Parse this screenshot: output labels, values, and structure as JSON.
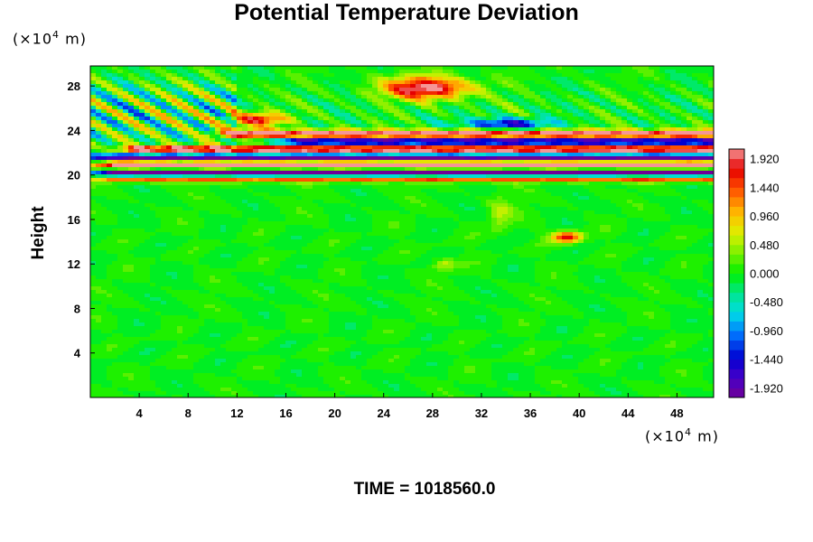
{
  "chart_data": {
    "type": "heatmap",
    "title": "Potential Temperature Deviation",
    "ylabel": "Height",
    "xlabel": "",
    "y_unit": {
      "prefix": "(×10",
      "exp": "4",
      "suffix": " m)"
    },
    "x_unit": {
      "prefix": "(×10",
      "exp": "4",
      "suffix": " m)"
    },
    "xlim": [
      0,
      51
    ],
    "ylim": [
      0,
      29.8
    ],
    "x_ticks": [
      4,
      8,
      12,
      16,
      20,
      24,
      28,
      32,
      36,
      40,
      44,
      48
    ],
    "y_ticks": [
      4,
      8,
      12,
      16,
      20,
      24,
      28
    ],
    "x_tick_labels": [
      "4",
      "8",
      "12",
      "16",
      "20",
      "24",
      "28",
      "32",
      "36",
      "40",
      "44",
      "48"
    ],
    "y_tick_labels": [
      "4",
      "8",
      "12",
      "16",
      "20",
      "24",
      "28"
    ],
    "colorbar": {
      "min": -2.08,
      "max": 2.08,
      "labels": [
        "1.920",
        "1.440",
        "0.960",
        "0.480",
        "0.000",
        "-0.480",
        "-0.960",
        "-1.440",
        "-1.920"
      ],
      "label_values": [
        1.92,
        1.44,
        0.96,
        0.48,
        0.0,
        -0.48,
        -0.96,
        -1.44,
        -1.92
      ]
    },
    "features": [
      {
        "x": 27.5,
        "y": 27.8,
        "sx": 3.5,
        "sy": 1.0,
        "v": 2.2
      },
      {
        "x": 13.5,
        "y": 25.0,
        "sx": 2.5,
        "sy": 0.6,
        "v": 1.7
      },
      {
        "x": 34.0,
        "y": 24.6,
        "sx": 3.5,
        "sy": 0.5,
        "v": -1.6
      },
      {
        "x": 39.0,
        "y": 14.4,
        "sx": 1.2,
        "sy": 0.5,
        "v": 1.8
      },
      {
        "x": 29.0,
        "y": 12.0,
        "sx": 1.0,
        "sy": 0.6,
        "v": 0.6
      },
      {
        "x": 33.5,
        "y": 16.5,
        "sx": 1.0,
        "sy": 1.5,
        "v": 0.5
      }
    ],
    "bands": [
      {
        "y": 23.7,
        "sy": 0.35,
        "v": 2.3,
        "x0": 10,
        "x1": 51
      },
      {
        "y": 23.0,
        "sy": 0.3,
        "v": -2.3,
        "x0": 15,
        "x1": 51
      },
      {
        "y": 22.3,
        "sy": 0.35,
        "v": 2.3,
        "x0": 2,
        "x1": 51
      },
      {
        "y": 21.6,
        "sy": 0.3,
        "v": -2.3,
        "x0": 0,
        "x1": 51
      },
      {
        "y": 20.9,
        "sy": 0.35,
        "v": 2.3,
        "x0": 0,
        "x1": 51
      },
      {
        "y": 20.2,
        "sy": 0.3,
        "v": -2.3,
        "x0": 0,
        "x1": 51
      },
      {
        "y": 19.6,
        "sy": 0.25,
        "v": 1.4,
        "x0": 0,
        "x1": 51
      }
    ],
    "time_label": "TIME = 1018560.0"
  }
}
